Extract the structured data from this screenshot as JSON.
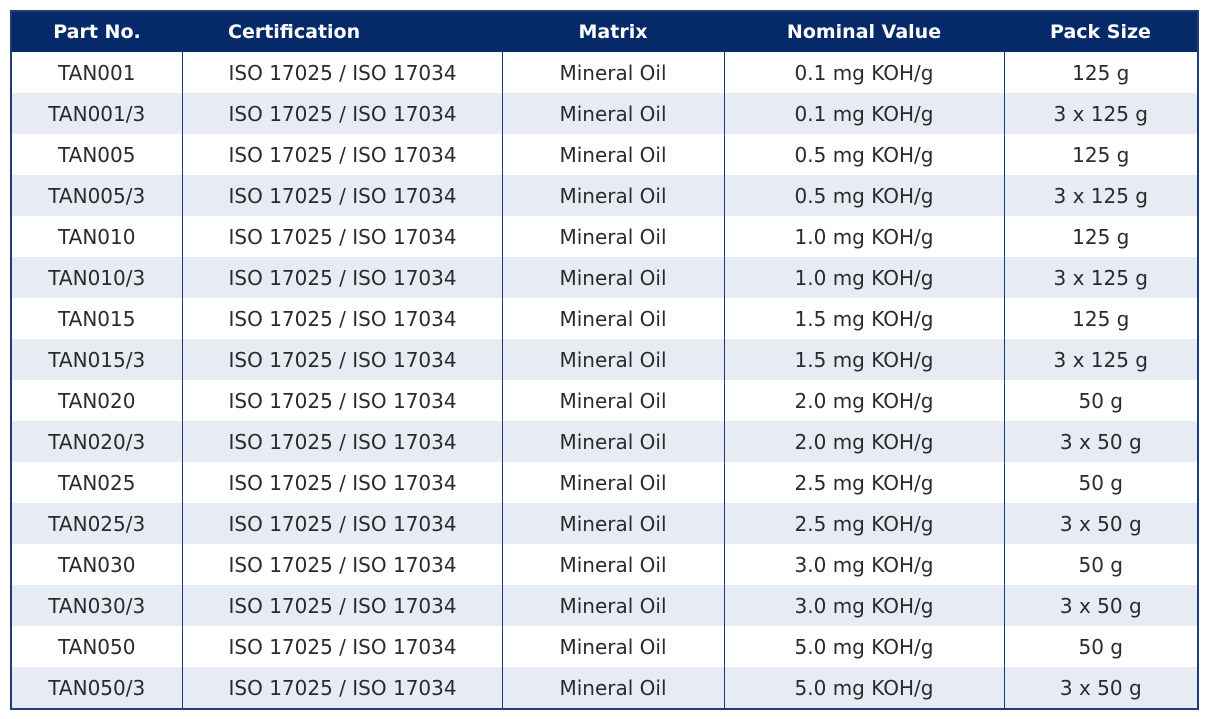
{
  "headers": {
    "part_no": "Part No.",
    "certification": "Certification",
    "matrix": "Matrix",
    "nominal_value": "Nominal Value",
    "pack_size": "Pack Size"
  },
  "rows": [
    {
      "part_no": "TAN001",
      "certification": "ISO 17025 / ISO 17034",
      "matrix": "Mineral Oil",
      "nominal_value": "0.1 mg KOH/g",
      "pack_size": "125 g"
    },
    {
      "part_no": "TAN001/3",
      "certification": "ISO 17025 / ISO 17034",
      "matrix": "Mineral Oil",
      "nominal_value": "0.1 mg KOH/g",
      "pack_size": "3 x 125 g"
    },
    {
      "part_no": "TAN005",
      "certification": "ISO 17025 / ISO 17034",
      "matrix": "Mineral Oil",
      "nominal_value": "0.5 mg KOH/g",
      "pack_size": "125 g"
    },
    {
      "part_no": "TAN005/3",
      "certification": "ISO 17025 / ISO 17034",
      "matrix": "Mineral Oil",
      "nominal_value": "0.5 mg KOH/g",
      "pack_size": "3 x 125 g"
    },
    {
      "part_no": "TAN010",
      "certification": "ISO 17025 / ISO 17034",
      "matrix": "Mineral Oil",
      "nominal_value": "1.0 mg KOH/g",
      "pack_size": "125 g"
    },
    {
      "part_no": "TAN010/3",
      "certification": "ISO 17025 / ISO 17034",
      "matrix": "Mineral Oil",
      "nominal_value": "1.0 mg KOH/g",
      "pack_size": "3 x 125 g"
    },
    {
      "part_no": "TAN015",
      "certification": "ISO 17025 / ISO 17034",
      "matrix": "Mineral Oil",
      "nominal_value": "1.5 mg KOH/g",
      "pack_size": "125 g"
    },
    {
      "part_no": "TAN015/3",
      "certification": "ISO 17025 / ISO 17034",
      "matrix": "Mineral Oil",
      "nominal_value": "1.5 mg KOH/g",
      "pack_size": "3 x 125 g"
    },
    {
      "part_no": "TAN020",
      "certification": "ISO 17025 / ISO 17034",
      "matrix": "Mineral Oil",
      "nominal_value": "2.0 mg KOH/g",
      "pack_size": "50 g"
    },
    {
      "part_no": "TAN020/3",
      "certification": "ISO 17025 / ISO 17034",
      "matrix": "Mineral Oil",
      "nominal_value": "2.0 mg KOH/g",
      "pack_size": "3 x 50 g"
    },
    {
      "part_no": "TAN025",
      "certification": "ISO 17025 / ISO 17034",
      "matrix": "Mineral Oil",
      "nominal_value": "2.5 mg KOH/g",
      "pack_size": "50 g"
    },
    {
      "part_no": "TAN025/3",
      "certification": "ISO 17025 / ISO 17034",
      "matrix": "Mineral Oil",
      "nominal_value": "2.5 mg KOH/g",
      "pack_size": "3 x 50 g"
    },
    {
      "part_no": "TAN030",
      "certification": "ISO 17025 / ISO 17034",
      "matrix": "Mineral Oil",
      "nominal_value": "3.0 mg KOH/g",
      "pack_size": "50 g"
    },
    {
      "part_no": "TAN030/3",
      "certification": "ISO 17025 / ISO 17034",
      "matrix": "Mineral Oil",
      "nominal_value": "3.0 mg KOH/g",
      "pack_size": "3 x 50 g"
    },
    {
      "part_no": "TAN050",
      "certification": "ISO 17025 / ISO 17034",
      "matrix": "Mineral Oil",
      "nominal_value": "5.0 mg KOH/g",
      "pack_size": "50 g"
    },
    {
      "part_no": "TAN050/3",
      "certification": "ISO 17025 / ISO 17034",
      "matrix": "Mineral Oil",
      "nominal_value": "5.0 mg KOH/g",
      "pack_size": "3 x 50 g"
    }
  ],
  "colors": {
    "header_bg": "#062a69",
    "header_text": "#ffffff",
    "stripe_bg": "#e7ebf3",
    "divider": "#163a7a"
  }
}
